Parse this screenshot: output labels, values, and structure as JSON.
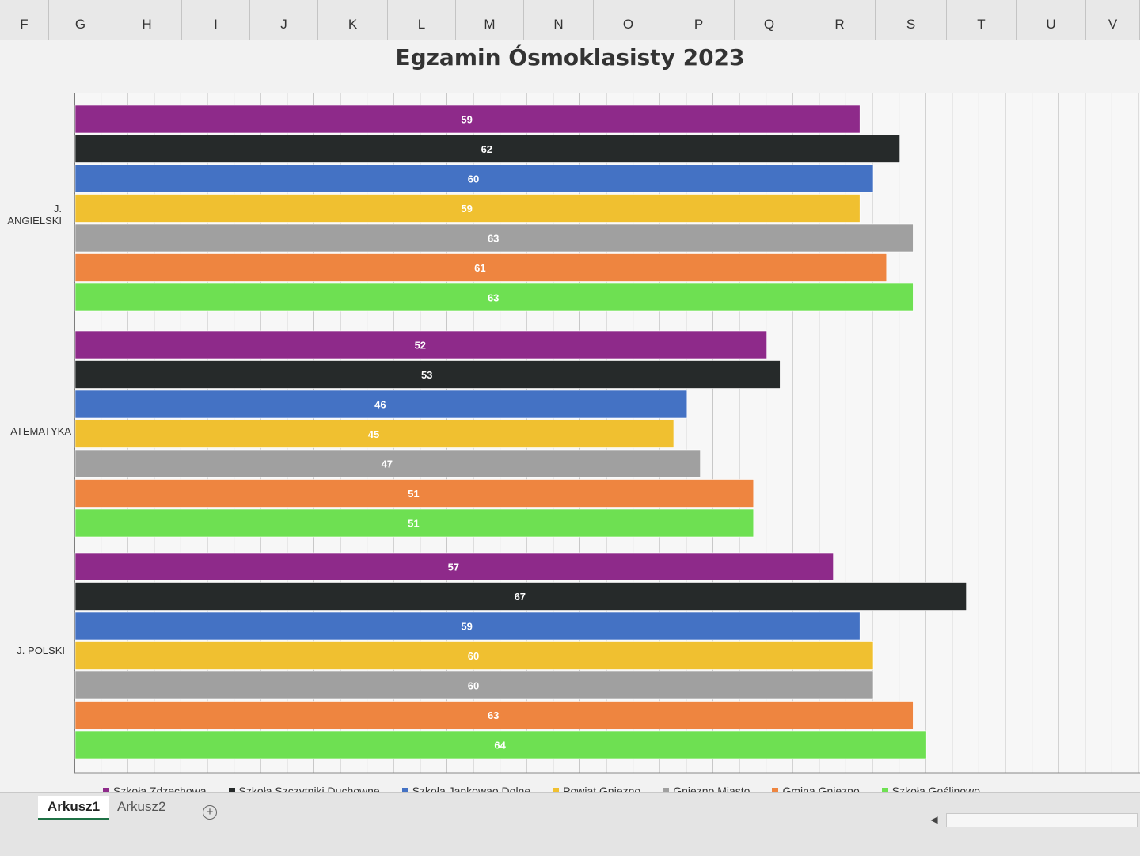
{
  "columns": [
    "F",
    "G",
    "H",
    "I",
    "J",
    "K",
    "L",
    "M",
    "N",
    "O",
    "P",
    "Q",
    "R",
    "S",
    "T",
    "U",
    "V"
  ],
  "chart_data": {
    "type": "bar",
    "orientation": "horizontal",
    "title": "Egzamin Ósmoklasisty 2023",
    "categories": [
      "J. ANGIELSKI",
      "ATEMATYKA",
      "J. POLSKI"
    ],
    "series": [
      {
        "name": "Szkoła Zdzechowa",
        "color": "#8e2a8a",
        "values": [
          59,
          52,
          57
        ]
      },
      {
        "name": "Szkoła Szczytniki Duchowne",
        "color": "#262a2a",
        "values": [
          62,
          53,
          67
        ]
      },
      {
        "name": "Szkoła Jankowao Dolne",
        "color": "#4472c4",
        "values": [
          60,
          46,
          59
        ]
      },
      {
        "name": "Powiat Gniezno",
        "color": "#f0c030",
        "values": [
          59,
          45,
          60
        ]
      },
      {
        "name": "Gniezno Miasto",
        "color": "#a0a0a0",
        "values": [
          63,
          47,
          60
        ]
      },
      {
        "name": "Gmina Gniezno",
        "color": "#ee8540",
        "values": [
          61,
          51,
          63
        ]
      },
      {
        "name": "Szkoła Goślinowo",
        "color": "#6ee052",
        "values": [
          63,
          51,
          64
        ]
      }
    ],
    "data_labels": true,
    "legend_position": "bottom",
    "grid": true
  },
  "sheet_tabs": [
    "Arkusz1",
    "Arkusz2"
  ],
  "add_sheet_label": "+",
  "scroll_left_label": "◀"
}
